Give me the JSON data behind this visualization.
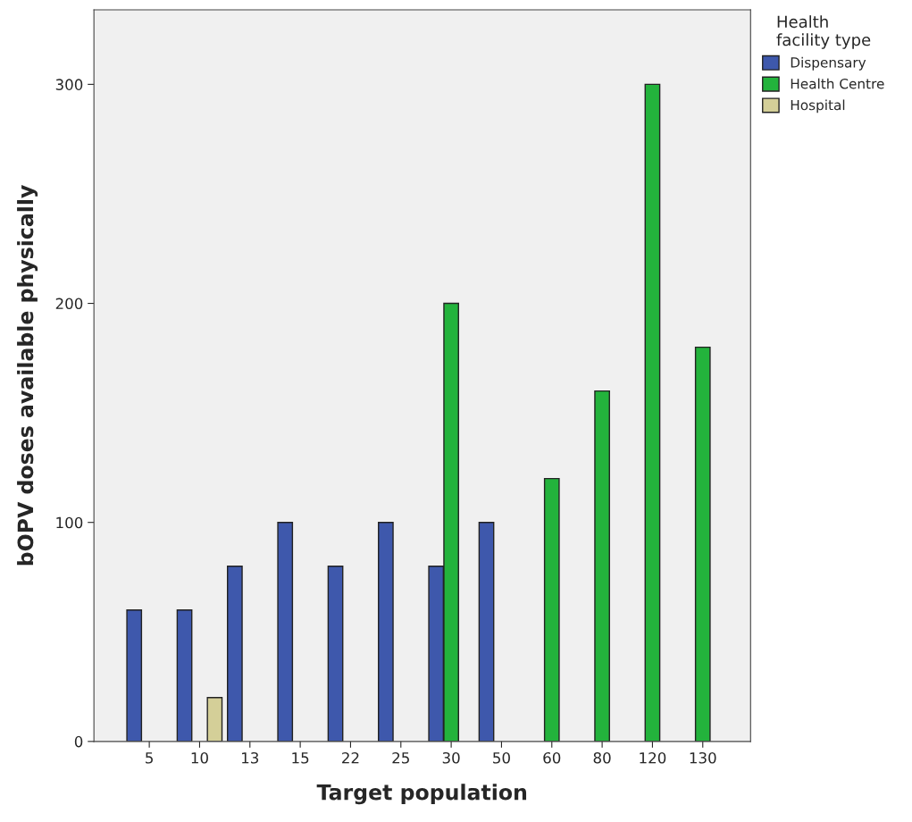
{
  "chart_data": {
    "type": "bar",
    "xlabel": "Target population",
    "ylabel": "bOPV doses available physically",
    "legend_title": "Health\nfacility type",
    "categories": [
      "5",
      "10",
      "13",
      "15",
      "22",
      "25",
      "30",
      "50",
      "60",
      "80",
      "120",
      "130"
    ],
    "series": [
      {
        "name": "Dispensary",
        "color": "#3e58ac",
        "values": [
          60,
          60,
          80,
          100,
          80,
          100,
          80,
          100,
          null,
          null,
          null,
          null
        ]
      },
      {
        "name": "Health Centre",
        "color": "#23b33c",
        "values": [
          null,
          null,
          null,
          null,
          null,
          null,
          200,
          null,
          120,
          160,
          300,
          180
        ]
      },
      {
        "name": "Hospital",
        "color": "#d4cf98",
        "values": [
          null,
          20,
          null,
          null,
          null,
          null,
          null,
          null,
          null,
          null,
          null,
          null
        ]
      }
    ],
    "ylim": [
      0,
      334
    ],
    "yticks": [
      0,
      100,
      200,
      300
    ],
    "grid": false,
    "legend": "right"
  }
}
